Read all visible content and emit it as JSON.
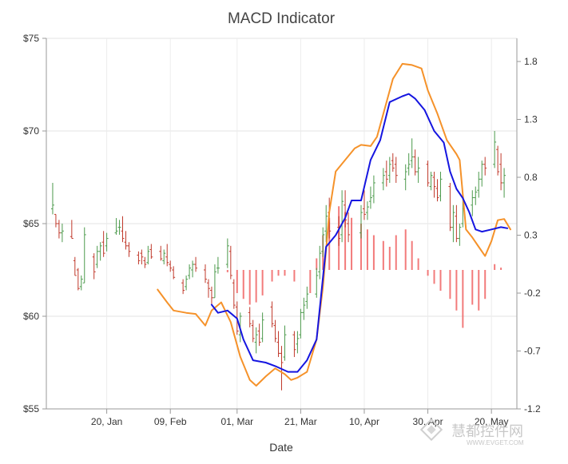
{
  "chart_data": {
    "type": "line",
    "title": "MACD Indicator",
    "xlabel": "Date",
    "x_ticks": [
      "20, Jan",
      "09, Feb",
      "01, Mar",
      "21, Mar",
      "10, Apr",
      "30, Apr",
      "20, May"
    ],
    "y_left": {
      "ticks": [
        "$55",
        "$60",
        "$65",
        "$70",
        "$75"
      ],
      "range": [
        55,
        75
      ]
    },
    "y_right": {
      "ticks": [
        "-1.2",
        "-0.7",
        "-0.2",
        "0.3",
        "0.8",
        "1.3",
        "1.8"
      ],
      "range": [
        -1.2,
        2.0
      ]
    },
    "grid": true,
    "colors": {
      "up": "#4c9a4c",
      "down": "#c0392b",
      "histogram": "#ef5a5a",
      "signal": "#f5922a",
      "macd": "#1515e0"
    },
    "histogram": {
      "dates": [
        "2012-02-27",
        "2012-03-01",
        "2012-03-03",
        "2012-03-05",
        "2012-03-07",
        "2012-03-09",
        "2012-03-12",
        "2012-03-14",
        "2012-03-16",
        "2012-03-19",
        "2012-03-24",
        "2012-03-26",
        "2012-03-28",
        "2012-03-30",
        "2012-04-02",
        "2012-04-04",
        "2012-04-06",
        "2012-04-09",
        "2012-04-11",
        "2012-04-13",
        "2012-04-16",
        "2012-04-18",
        "2012-04-20",
        "2012-04-23",
        "2012-04-25",
        "2012-04-27",
        "2012-04-30",
        "2012-05-02",
        "2012-05-04",
        "2012-05-07",
        "2012-05-09",
        "2012-05-11",
        "2012-05-14",
        "2012-05-16",
        "2012-05-18",
        "2012-05-21",
        "2012-05-23"
      ],
      "values": [
        -0.02,
        -0.2,
        -0.25,
        -0.3,
        -0.28,
        -0.22,
        -0.1,
        -0.05,
        -0.05,
        -0.1,
        -0.2,
        0.1,
        0.3,
        0.45,
        0.55,
        0.5,
        0.45,
        0.4,
        0.35,
        0.3,
        0.25,
        0.2,
        0.3,
        0.35,
        0.25,
        0.1,
        -0.05,
        -0.12,
        -0.18,
        -0.25,
        -0.35,
        -0.5,
        -0.3,
        -0.35,
        -0.25,
        0.05,
        0.02
      ]
    },
    "series": [
      {
        "name": "",
        "points": [
          [
            "2012-02-05",
            -0.17
          ],
          [
            "2012-02-08",
            -0.28
          ],
          [
            "2012-02-10",
            -0.35
          ],
          [
            "2012-02-14",
            -0.37
          ],
          [
            "2012-02-17",
            -0.38
          ],
          [
            "2012-02-20",
            -0.48
          ],
          [
            "2012-02-22",
            -0.35
          ],
          [
            "2012-02-25",
            -0.28
          ],
          [
            "2012-02-28",
            -0.45
          ],
          [
            "2012-03-02",
            -0.75
          ],
          [
            "2012-03-05",
            -0.95
          ],
          [
            "2012-03-07",
            -1.0
          ],
          [
            "2012-03-10",
            -0.92
          ],
          [
            "2012-03-13",
            -0.85
          ],
          [
            "2012-03-16",
            -0.9
          ],
          [
            "2012-03-18",
            -0.95
          ],
          [
            "2012-03-20",
            -0.93
          ],
          [
            "2012-03-23",
            -0.88
          ],
          [
            "2012-03-26",
            -0.6
          ],
          [
            "2012-03-28",
            -0.15
          ],
          [
            "2012-03-30",
            0.5
          ],
          [
            "2012-04-01",
            0.85
          ],
          [
            "2012-04-04",
            0.95
          ],
          [
            "2012-04-07",
            1.05
          ],
          [
            "2012-04-09",
            1.08
          ],
          [
            "2012-04-12",
            1.07
          ],
          [
            "2012-04-14",
            1.15
          ],
          [
            "2012-04-16",
            1.35
          ],
          [
            "2012-04-19",
            1.65
          ],
          [
            "2012-04-22",
            1.78
          ],
          [
            "2012-04-25",
            1.77
          ],
          [
            "2012-04-28",
            1.74
          ],
          [
            "2012-04-30",
            1.55
          ],
          [
            "2012-05-03",
            1.35
          ],
          [
            "2012-05-06",
            1.12
          ],
          [
            "2012-05-09",
            1.0
          ],
          [
            "2012-05-10",
            0.95
          ],
          [
            "2012-05-12",
            0.35
          ],
          [
            "2012-05-14",
            0.28
          ],
          [
            "2012-05-16",
            0.2
          ],
          [
            "2012-05-18",
            0.12
          ],
          [
            "2012-05-20",
            0.25
          ],
          [
            "2012-05-22",
            0.43
          ],
          [
            "2012-05-24",
            0.44
          ],
          [
            "2012-05-26",
            0.35
          ]
        ]
      },
      {
        "name": "",
        "points": [
          [
            "2012-02-22",
            -0.3
          ],
          [
            "2012-02-24",
            -0.37
          ],
          [
            "2012-02-27",
            -0.35
          ],
          [
            "2012-03-01",
            -0.42
          ],
          [
            "2012-03-03",
            -0.6
          ],
          [
            "2012-03-06",
            -0.78
          ],
          [
            "2012-03-10",
            -0.8
          ],
          [
            "2012-03-13",
            -0.83
          ],
          [
            "2012-03-17",
            -0.88
          ],
          [
            "2012-03-20",
            -0.88
          ],
          [
            "2012-03-23",
            -0.78
          ],
          [
            "2012-03-26",
            -0.6
          ],
          [
            "2012-03-29",
            0.2
          ],
          [
            "2012-04-01",
            0.3
          ],
          [
            "2012-04-04",
            0.45
          ],
          [
            "2012-04-06",
            0.6
          ],
          [
            "2012-04-09",
            0.6
          ],
          [
            "2012-04-12",
            0.95
          ],
          [
            "2012-04-15",
            1.12
          ],
          [
            "2012-04-18",
            1.45
          ],
          [
            "2012-04-22",
            1.5
          ],
          [
            "2012-04-24",
            1.52
          ],
          [
            "2012-04-26",
            1.48
          ],
          [
            "2012-04-29",
            1.38
          ],
          [
            "2012-05-02",
            1.2
          ],
          [
            "2012-05-05",
            1.1
          ],
          [
            "2012-05-07",
            0.85
          ],
          [
            "2012-05-09",
            0.7
          ],
          [
            "2012-05-11",
            0.62
          ],
          [
            "2012-05-13",
            0.5
          ],
          [
            "2012-05-15",
            0.35
          ],
          [
            "2012-05-17",
            0.33
          ],
          [
            "2012-05-20",
            0.35
          ],
          [
            "2012-05-23",
            0.37
          ],
          [
            "2012-05-25",
            0.36
          ]
        ]
      }
    ],
    "ohlc": [
      [
        "2012-01-03",
        65.8,
        67.2,
        65.5,
        66.0
      ],
      [
        "2012-01-04",
        65.5,
        65.5,
        64.8,
        65.0
      ],
      [
        "2012-01-05",
        65.0,
        65.2,
        64.2,
        64.5
      ],
      [
        "2012-01-06",
        64.5,
        65.0,
        64.0,
        64.6
      ],
      [
        "2012-01-09",
        64.3,
        65.2,
        64.2,
        64.2
      ],
      [
        "2012-01-10",
        63.0,
        63.2,
        62.2,
        62.2
      ],
      [
        "2012-01-11",
        62.5,
        62.6,
        61.4,
        61.5
      ],
      [
        "2012-01-12",
        61.6,
        62.2,
        61.4,
        62.0
      ],
      [
        "2012-01-13",
        61.8,
        64.8,
        61.8,
        64.4
      ],
      [
        "2012-01-16",
        63.2,
        63.4,
        62.0,
        62.4
      ],
      [
        "2012-01-17",
        62.8,
        63.8,
        62.6,
        63.5
      ],
      [
        "2012-01-18",
        63.5,
        64.0,
        63.0,
        63.8
      ],
      [
        "2012-01-19",
        64.0,
        64.6,
        63.2,
        63.4
      ],
      [
        "2012-01-20",
        63.8,
        64.5,
        63.5,
        64.2
      ],
      [
        "2012-01-23",
        64.5,
        65.3,
        64.4,
        64.6
      ],
      [
        "2012-01-24",
        64.8,
        65.2,
        64.4,
        64.8
      ],
      [
        "2012-01-25",
        64.6,
        65.4,
        64.0,
        64.2
      ],
      [
        "2012-01-26",
        64.0,
        64.6,
        63.6,
        63.8
      ],
      [
        "2012-01-27",
        63.8,
        64.0,
        63.2,
        63.5
      ],
      [
        "2012-01-30",
        63.3,
        63.5,
        62.8,
        63.0
      ],
      [
        "2012-01-31",
        63.4,
        63.6,
        62.8,
        63.2
      ],
      [
        "2012-02-01",
        63.0,
        63.2,
        62.6,
        62.8
      ],
      [
        "2012-02-02",
        62.9,
        63.8,
        62.8,
        63.5
      ],
      [
        "2012-02-03",
        63.6,
        63.9,
        63.1,
        63.2
      ],
      [
        "2012-02-06",
        63.5,
        63.8,
        63.0,
        63.1
      ],
      [
        "2012-02-07",
        63.0,
        63.6,
        62.8,
        63.4
      ],
      [
        "2012-02-08",
        63.2,
        63.9,
        62.7,
        62.9
      ],
      [
        "2012-02-09",
        62.8,
        63.0,
        62.4,
        62.6
      ],
      [
        "2012-02-10",
        62.5,
        62.7,
        62.0,
        62.1
      ],
      [
        "2012-02-13",
        61.8,
        62.0,
        61.2,
        61.4
      ],
      [
        "2012-02-14",
        61.6,
        62.2,
        61.4,
        62.0
      ],
      [
        "2012-02-15",
        62.2,
        62.8,
        62.0,
        62.6
      ],
      [
        "2012-02-16",
        62.5,
        63.0,
        62.1,
        62.8
      ],
      [
        "2012-02-17",
        62.8,
        63.2,
        62.4,
        62.6
      ],
      [
        "2012-02-20",
        62.5,
        62.8,
        61.8,
        62.0
      ],
      [
        "2012-02-21",
        61.8,
        62.0,
        61.0,
        61.5
      ],
      [
        "2012-02-22",
        61.4,
        61.6,
        60.6,
        61.0
      ],
      [
        "2012-02-23",
        61.0,
        62.8,
        61.0,
        62.4
      ],
      [
        "2012-02-24",
        62.6,
        63.2,
        62.3,
        62.6
      ],
      [
        "2012-02-27",
        62.8,
        64.2,
        62.6,
        63.8
      ],
      [
        "2012-02-28",
        63.5,
        63.8,
        62.0,
        62.2
      ],
      [
        "2012-02-29",
        61.8,
        62.0,
        60.4,
        60.6
      ],
      [
        "2012-03-01",
        60.5,
        60.8,
        59.0,
        59.2
      ],
      [
        "2012-03-02",
        59.0,
        60.2,
        58.6,
        60.0
      ],
      [
        "2012-03-05",
        60.2,
        60.5,
        59.4,
        59.6
      ],
      [
        "2012-03-06",
        59.5,
        59.8,
        58.6,
        58.8
      ],
      [
        "2012-03-07",
        58.6,
        59.4,
        58.0,
        59.0
      ],
      [
        "2012-03-08",
        59.2,
        59.6,
        58.4,
        58.6
      ],
      [
        "2012-03-09",
        58.8,
        60.2,
        58.6,
        59.8
      ],
      [
        "2012-03-12",
        60.5,
        60.8,
        59.4,
        59.6
      ],
      [
        "2012-03-13",
        59.5,
        59.8,
        58.6,
        58.8
      ],
      [
        "2012-03-14",
        58.6,
        59.2,
        57.8,
        58.0
      ],
      [
        "2012-03-15",
        58.0,
        58.4,
        56.0,
        57.5
      ],
      [
        "2012-03-16",
        57.8,
        59.5,
        57.6,
        59.0
      ],
      [
        "2012-03-19",
        59.0,
        59.2,
        57.8,
        58.2
      ],
      [
        "2012-03-20",
        58.5,
        59.2,
        58.0,
        58.8
      ],
      [
        "2012-03-21",
        59.0,
        60.4,
        58.8,
        60.2
      ],
      [
        "2012-03-22",
        60.2,
        61.0,
        59.8,
        60.6
      ],
      [
        "2012-03-23",
        60.8,
        61.6,
        60.4,
        61.2
      ],
      [
        "2012-03-26",
        61.2,
        62.6,
        61.0,
        62.2
      ],
      [
        "2012-03-27",
        62.4,
        63.8,
        62.0,
        63.4
      ],
      [
        "2012-03-28",
        63.5,
        64.8,
        63.2,
        64.4
      ],
      [
        "2012-03-29",
        64.6,
        66.0,
        64.0,
        65.4
      ],
      [
        "2012-03-30",
        65.6,
        66.4,
        64.2,
        64.6
      ],
      [
        "2012-04-02",
        64.8,
        65.4,
        63.8,
        64.2
      ],
      [
        "2012-04-03",
        64.4,
        66.8,
        64.0,
        66.2
      ],
      [
        "2012-04-04",
        66.0,
        66.8,
        64.8,
        65.2
      ],
      [
        "2012-04-05",
        65.0,
        65.6,
        64.0,
        64.4
      ],
      [
        "2012-04-09",
        64.5,
        66.0,
        64.2,
        65.6
      ],
      [
        "2012-04-10",
        65.8,
        66.8,
        65.2,
        65.5
      ],
      [
        "2012-04-11",
        65.6,
        66.2,
        65.2,
        65.9
      ],
      [
        "2012-04-12",
        66.2,
        67.0,
        65.8,
        66.4
      ],
      [
        "2012-04-13",
        66.5,
        67.6,
        66.1,
        67.2
      ],
      [
        "2012-04-16",
        67.2,
        68.0,
        66.8,
        67.6
      ],
      [
        "2012-04-17",
        67.8,
        68.4,
        67.0,
        67.4
      ],
      [
        "2012-04-18",
        67.6,
        68.6,
        67.2,
        68.2
      ],
      [
        "2012-04-19",
        68.4,
        68.8,
        67.8,
        68.0
      ],
      [
        "2012-04-20",
        68.2,
        68.6,
        67.2,
        67.6
      ],
      [
        "2012-04-23",
        67.4,
        68.2,
        66.8,
        67.8
      ],
      [
        "2012-04-24",
        68.0,
        68.8,
        67.6,
        68.2
      ],
      [
        "2012-04-25",
        68.4,
        69.6,
        68.0,
        68.6
      ],
      [
        "2012-04-26",
        68.6,
        69.0,
        67.6,
        67.8
      ],
      [
        "2012-04-27",
        67.8,
        68.6,
        67.2,
        68.0
      ],
      [
        "2012-04-30",
        68.2,
        68.4,
        67.0,
        67.2
      ],
      [
        "2012-05-01",
        67.0,
        67.8,
        66.8,
        67.6
      ],
      [
        "2012-05-02",
        67.5,
        67.8,
        66.4,
        67.0
      ],
      [
        "2012-05-03",
        66.9,
        67.4,
        66.2,
        66.4
      ],
      [
        "2012-05-04",
        66.5,
        67.8,
        66.2,
        67.4
      ],
      [
        "2012-05-07",
        67.0,
        67.2,
        64.6,
        64.8
      ],
      [
        "2012-05-08",
        64.8,
        66.0,
        64.0,
        65.6
      ],
      [
        "2012-05-09",
        65.4,
        66.0,
        64.0,
        64.2
      ],
      [
        "2012-05-10",
        64.2,
        65.0,
        63.8,
        64.8
      ],
      [
        "2012-05-11",
        65.0,
        66.4,
        64.8,
        65.8
      ],
      [
        "2012-05-14",
        66.0,
        66.8,
        65.4,
        66.4
      ],
      [
        "2012-05-15",
        66.4,
        67.0,
        66.0,
        66.7
      ],
      [
        "2012-05-16",
        66.8,
        67.8,
        66.4,
        67.4
      ],
      [
        "2012-05-17",
        67.4,
        68.4,
        67.0,
        68.2
      ],
      [
        "2012-05-18",
        68.2,
        68.6,
        67.6,
        68.0
      ],
      [
        "2012-05-21",
        68.2,
        70.0,
        68.0,
        69.4
      ],
      [
        "2012-05-22",
        69.0,
        69.2,
        67.6,
        67.8
      ],
      [
        "2012-05-23",
        68.2,
        68.8,
        66.8,
        67.2
      ],
      [
        "2012-05-24",
        67.2,
        68.0,
        66.4,
        67.6
      ]
    ]
  },
  "watermark": {
    "brand": "慧都控件网",
    "url": "WWW.EVGET.COM"
  }
}
